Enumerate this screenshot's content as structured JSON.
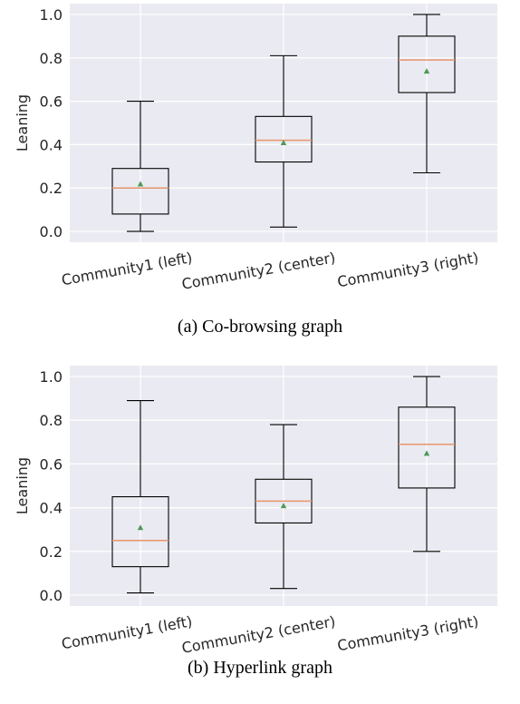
{
  "chart_data": [
    {
      "type": "box",
      "caption": "(a) Co-browsing graph",
      "ylabel": "Leaning",
      "ylim": [
        -0.05,
        1.05
      ],
      "yticks": [
        0.0,
        0.2,
        0.4,
        0.6,
        0.8,
        1.0
      ],
      "ytick_labels": [
        "0.0",
        "0.2",
        "0.4",
        "0.6",
        "0.8",
        "1.0"
      ],
      "categories": [
        "Community1 (left)",
        "Community2 (center)",
        "Community3 (right)"
      ],
      "boxes": [
        {
          "whisker_low": 0.0,
          "q1": 0.08,
          "median": 0.2,
          "q3": 0.29,
          "whisker_high": 0.6,
          "mean": 0.22
        },
        {
          "whisker_low": 0.02,
          "q1": 0.32,
          "median": 0.42,
          "q3": 0.53,
          "whisker_high": 0.81,
          "mean": 0.41
        },
        {
          "whisker_low": 0.27,
          "q1": 0.64,
          "median": 0.79,
          "q3": 0.9,
          "whisker_high": 1.0,
          "mean": 0.74
        }
      ],
      "grid": true
    },
    {
      "type": "box",
      "caption": "(b) Hyperlink graph",
      "ylabel": "Leaning",
      "ylim": [
        -0.05,
        1.05
      ],
      "yticks": [
        0.0,
        0.2,
        0.4,
        0.6,
        0.8,
        1.0
      ],
      "ytick_labels": [
        "0.0",
        "0.2",
        "0.4",
        "0.6",
        "0.8",
        "1.0"
      ],
      "categories": [
        "Community1 (left)",
        "Community2 (center)",
        "Community3 (right)"
      ],
      "boxes": [
        {
          "whisker_low": 0.01,
          "q1": 0.13,
          "median": 0.25,
          "q3": 0.45,
          "whisker_high": 0.89,
          "mean": 0.31
        },
        {
          "whisker_low": 0.03,
          "q1": 0.33,
          "median": 0.43,
          "q3": 0.53,
          "whisker_high": 0.78,
          "mean": 0.41
        },
        {
          "whisker_low": 0.2,
          "q1": 0.49,
          "median": 0.69,
          "q3": 0.86,
          "whisker_high": 1.0,
          "mean": 0.65
        }
      ],
      "grid": true
    }
  ],
  "colors": {
    "plot_background": "#eaeaf2",
    "grid": "#ffffff",
    "box_line": "#000000",
    "median": "#e8956c",
    "mean_marker": "#4c9a55"
  }
}
